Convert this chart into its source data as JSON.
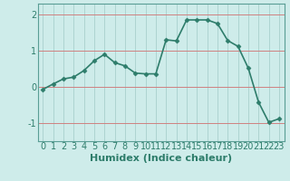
{
  "x": [
    0,
    1,
    2,
    3,
    4,
    5,
    6,
    7,
    8,
    9,
    10,
    11,
    12,
    13,
    14,
    15,
    16,
    17,
    18,
    19,
    20,
    21,
    22,
    23
  ],
  "y": [
    -0.07,
    0.08,
    0.22,
    0.27,
    0.45,
    0.72,
    0.9,
    0.67,
    0.58,
    0.38,
    0.36,
    0.36,
    1.3,
    1.27,
    1.85,
    1.85,
    1.85,
    1.75,
    1.28,
    1.12,
    0.52,
    -0.42,
    -0.98,
    -0.88
  ],
  "line_color": "#2e7d6b",
  "marker": "D",
  "marker_size": 2.5,
  "bg_color": "#ceecea",
  "grid_color": "#aed4d1",
  "xlabel": "Humidex (Indice chaleur)",
  "xlabel_fontsize": 8,
  "yticks": [
    -1,
    0,
    1,
    2
  ],
  "ylim": [
    -1.5,
    2.3
  ],
  "xlim": [
    -0.5,
    23.5
  ],
  "tick_fontsize": 7,
  "line_width": 1.2,
  "marker_color": "#2e7d6b",
  "spine_color": "#5a9e95",
  "xlabel_fontweight": "bold"
}
